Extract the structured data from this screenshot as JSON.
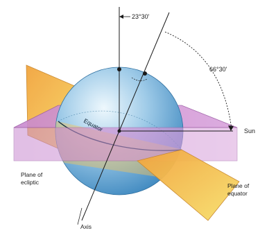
{
  "labels": {
    "angle_top": "23°30'",
    "angle_right": "66°30'",
    "equator": "Equator",
    "sun": "Sun",
    "plane_ecliptic_line1": "Plane of",
    "plane_ecliptic_line2": "ecliptic",
    "plane_equator_line1": "Plane of",
    "plane_equator_line2": "equator",
    "axis": "Axis"
  },
  "colors": {
    "ecliptic_plane": "#c98ad0",
    "equator_plane": "#f5b44a",
    "sphere_light": "#e8f4fb",
    "sphere_dark": "#3f90c8",
    "line": "#1a1a1a"
  }
}
